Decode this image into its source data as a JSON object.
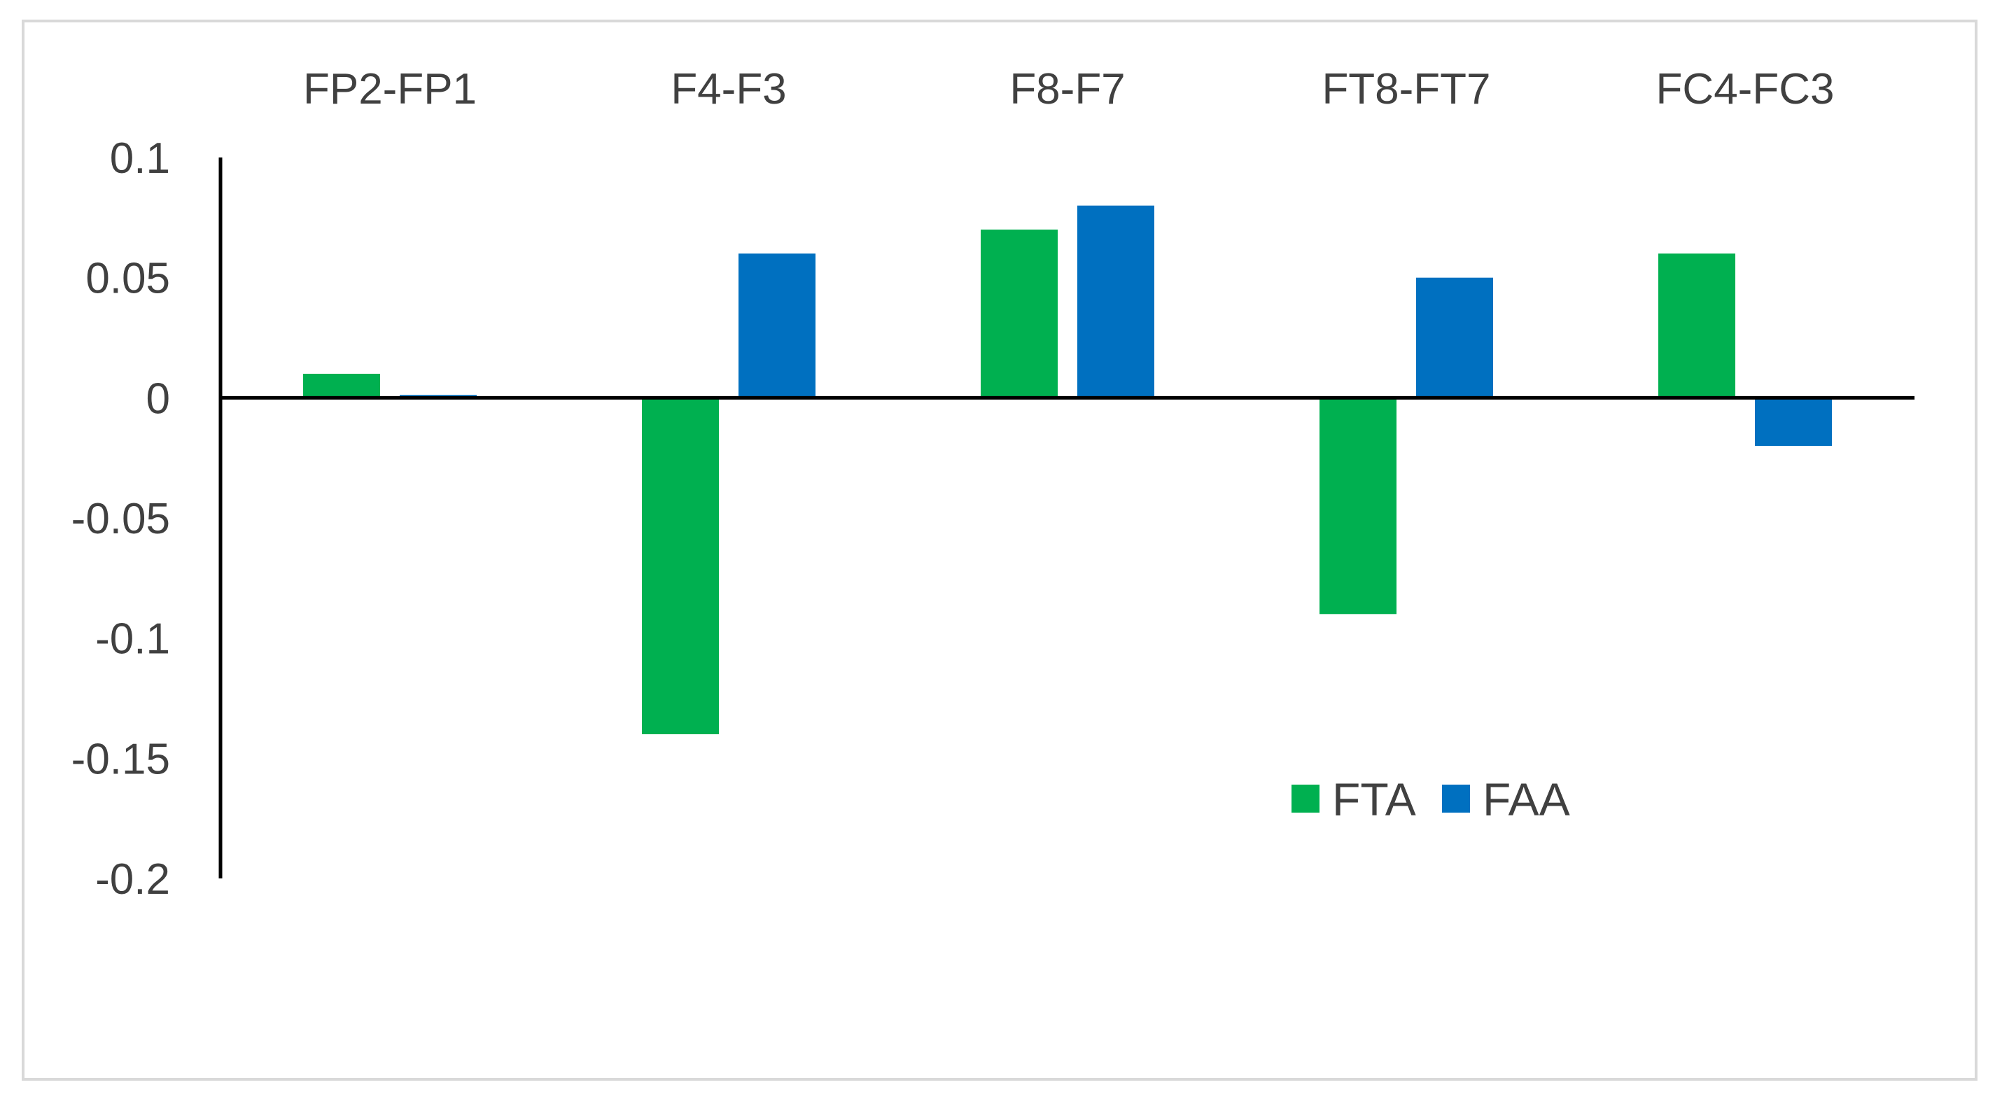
{
  "chart_data": {
    "type": "bar",
    "title": "",
    "xlabel": "",
    "ylabel": "",
    "categories": [
      "FP2-FP1",
      "F4-F3",
      "F8-F7",
      "FT8-FT7",
      "FC4-FC3"
    ],
    "series": [
      {
        "name": "FTA",
        "color": "#00B050",
        "values": [
          0.01,
          -0.14,
          0.07,
          -0.09,
          0.06
        ]
      },
      {
        "name": "FAA",
        "color": "#0070C0",
        "values": [
          0.001,
          0.06,
          0.08,
          0.05,
          -0.02
        ]
      }
    ],
    "ylim": [
      -0.2,
      0.1
    ],
    "yticks": [
      0.1,
      0.05,
      0,
      -0.05,
      -0.1,
      -0.15,
      -0.2
    ],
    "ytick_labels": [
      "0.1",
      "0.05",
      "0",
      "-0.05",
      "-0.1",
      "-0.15",
      "-0.2"
    ],
    "grid": false,
    "legend_position": "lower-right",
    "category_labels_position": "top"
  }
}
